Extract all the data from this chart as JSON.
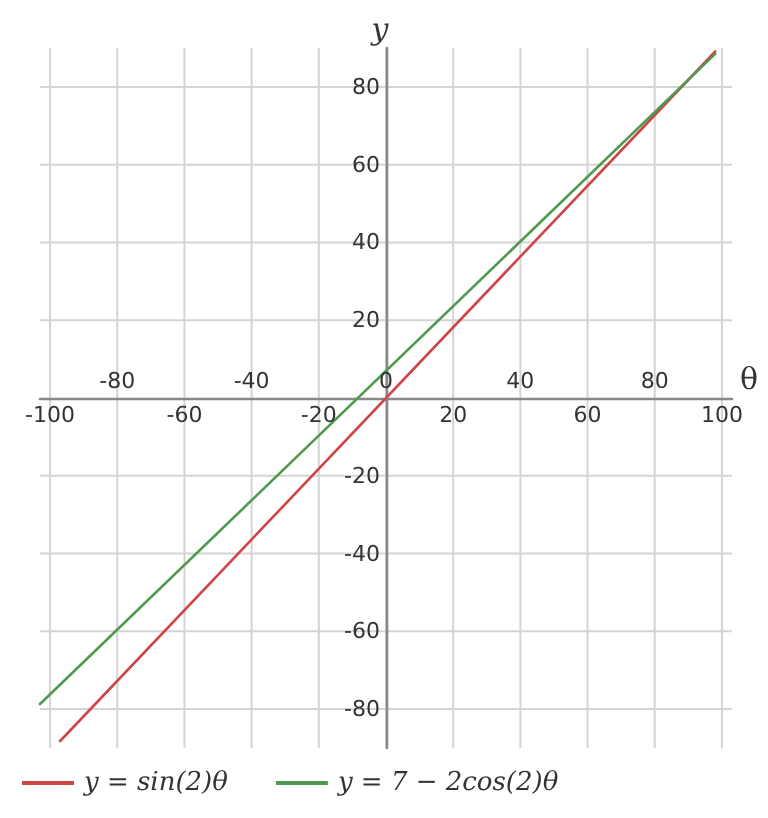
{
  "chart_data": {
    "type": "line",
    "xlabel": "θ",
    "ylabel": "y",
    "xlim": [
      -103,
      103
    ],
    "ylim": [
      -90,
      90
    ],
    "x2lim": [
      -103,
      103
    ],
    "xticks": [
      -100,
      -60,
      -20,
      20,
      60,
      100
    ],
    "x2ticks": [
      -80,
      -40,
      0,
      40,
      80
    ],
    "yticks": [
      -80,
      -60,
      -40,
      -20,
      20,
      40,
      60,
      80
    ],
    "grid": true,
    "legend": "bottom",
    "marker": "none",
    "line_style": "solid",
    "series": [
      {
        "name": "y = sin(2)θ",
        "color": "#d04545",
        "x": [
          -97,
          98
        ],
        "values": [
          -88.2,
          89.1
        ]
      },
      {
        "name": "y = 7 − 2cos(2)θ",
        "color": "#4f9a4f",
        "x": [
          -103,
          98
        ],
        "values": [
          -78.7,
          88.5
        ]
      }
    ]
  }
}
